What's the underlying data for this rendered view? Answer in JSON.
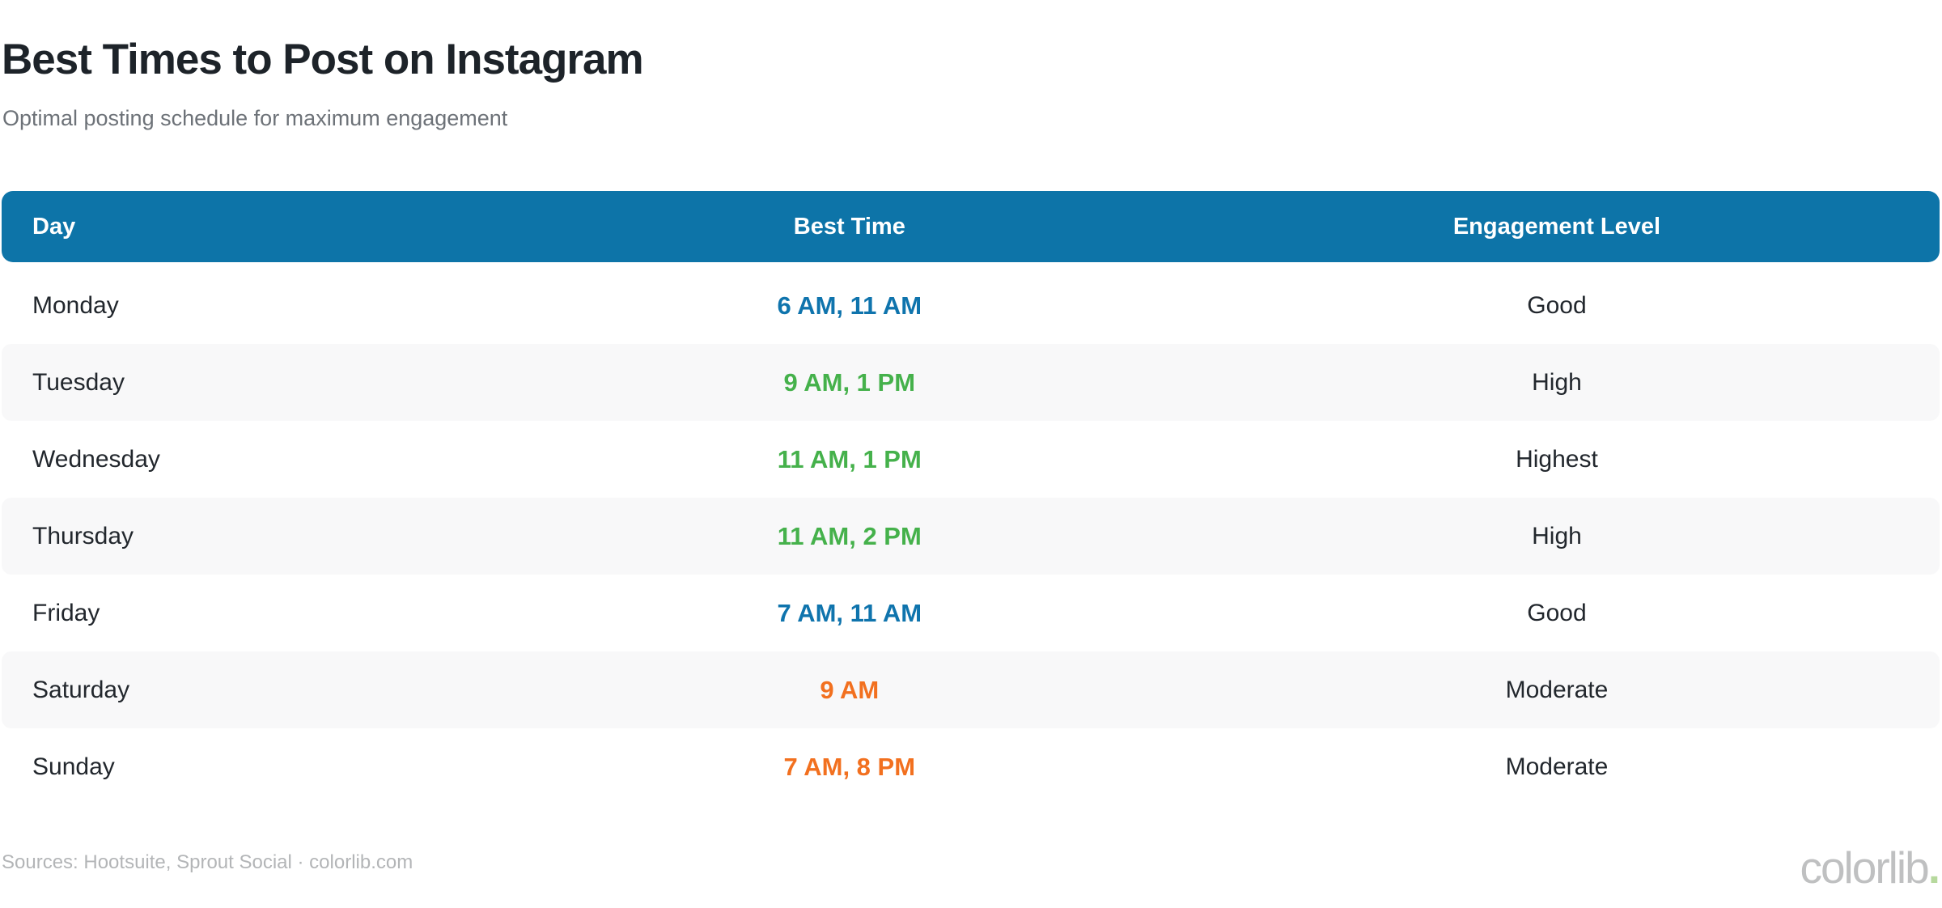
{
  "chart_data": {
    "type": "table",
    "title": "Best Times to Post on Instagram",
    "subtitle": "Optimal posting schedule for maximum engagement",
    "columns": [
      "Day",
      "Best Time",
      "Engagement Level"
    ],
    "rows": [
      {
        "day": "Monday",
        "best_time": "6 AM, 11 AM",
        "time_color": "blue",
        "engagement": "Good"
      },
      {
        "day": "Tuesday",
        "best_time": "9 AM, 1 PM",
        "time_color": "green",
        "engagement": "High"
      },
      {
        "day": "Wednesday",
        "best_time": "11 AM, 1 PM",
        "time_color": "green",
        "engagement": "Highest"
      },
      {
        "day": "Thursday",
        "best_time": "11 AM, 2 PM",
        "time_color": "green",
        "engagement": "High"
      },
      {
        "day": "Friday",
        "best_time": "7 AM, 11 AM",
        "time_color": "blue",
        "engagement": "Good"
      },
      {
        "day": "Saturday",
        "best_time": "9 AM",
        "time_color": "orange",
        "engagement": "Moderate"
      },
      {
        "day": "Sunday",
        "best_time": "7 AM, 8 PM",
        "time_color": "orange",
        "engagement": "Moderate"
      }
    ],
    "layout_hints": {
      "striped_rows": true,
      "header_position": "top",
      "grid": false
    }
  },
  "footer": {
    "sources": "Sources: Hootsuite, Sprout Social · colorlib.com",
    "brand": "colorlib",
    "brand_dot": "."
  },
  "colors": {
    "header_bg": "#0d74a8",
    "time_blue": "#0f74ad",
    "time_green": "#45b14b",
    "time_orange": "#f2701f",
    "row_alt": "#f8f8f9",
    "brand_dot": "#b7d99e",
    "title_text": "#1d2329",
    "subtitle_text": "#6d7278",
    "footer_text": "#b3b5b7"
  }
}
